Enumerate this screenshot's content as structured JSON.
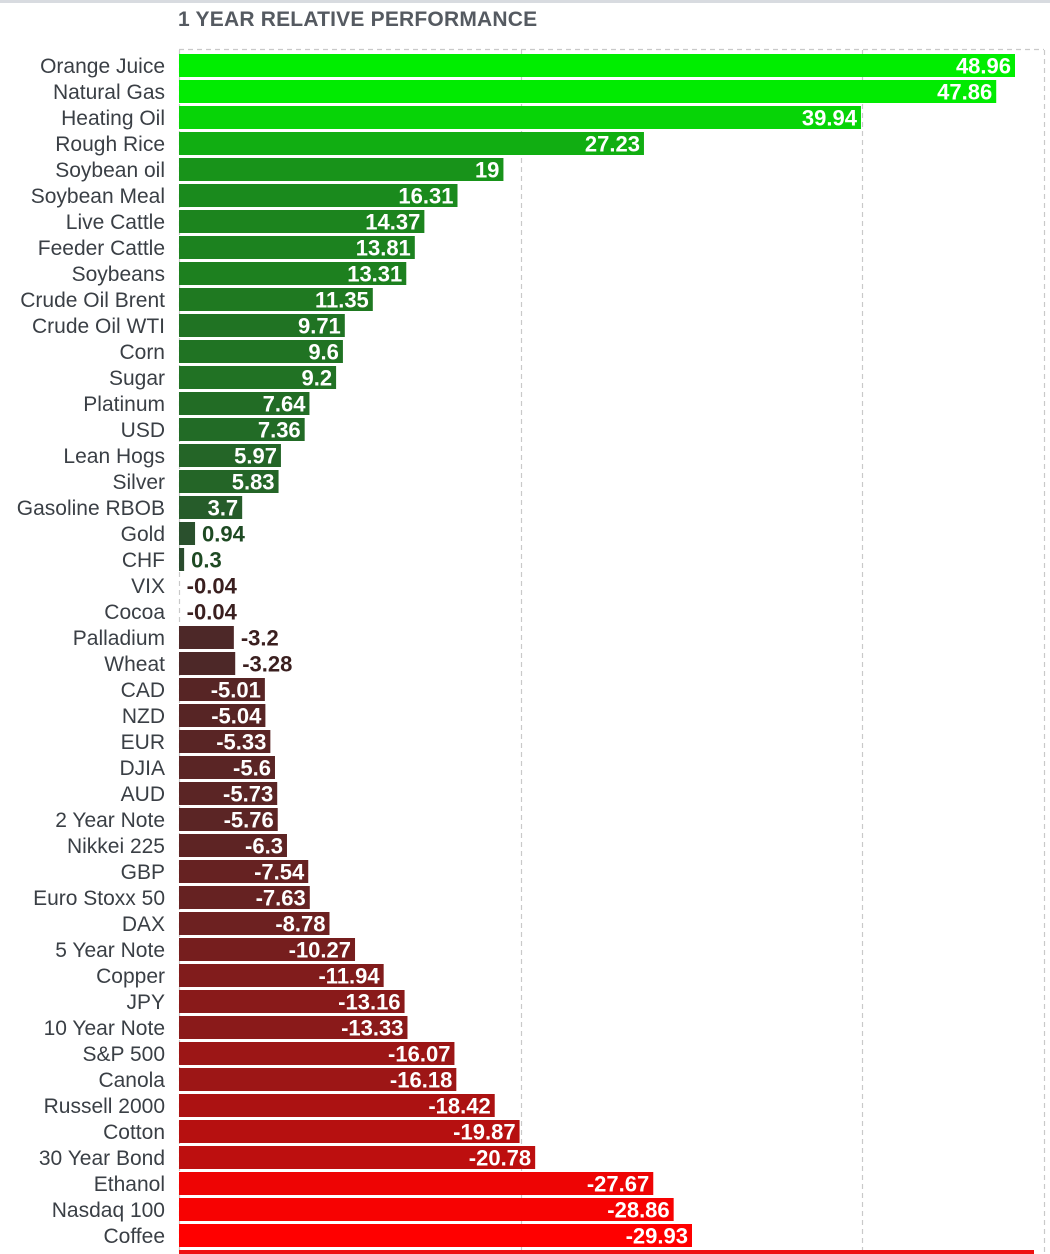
{
  "chart_data": {
    "type": "bar",
    "orientation": "horizontal",
    "title": "1 YEAR RELATIVE PERFORMANCE",
    "xlabel": "",
    "ylabel": "",
    "xlim": [
      -30,
      50
    ],
    "grid": true,
    "categories": [
      "Orange Juice",
      "Natural Gas",
      "Heating Oil",
      "Rough Rice",
      "Soybean oil",
      "Soybean Meal",
      "Live Cattle",
      "Feeder Cattle",
      "Soybeans",
      "Crude Oil Brent",
      "Crude Oil WTI",
      "Corn",
      "Sugar",
      "Platinum",
      "USD",
      "Lean Hogs",
      "Silver",
      "Gasoline RBOB",
      "Gold",
      "CHF",
      "VIX",
      "Cocoa",
      "Palladium",
      "Wheat",
      "CAD",
      "NZD",
      "EUR",
      "DJIA",
      "AUD",
      "2 Year Note",
      "Nikkei 225",
      "GBP",
      "Euro Stoxx 50",
      "DAX",
      "5 Year Note",
      "Copper",
      "JPY",
      "10 Year Note",
      "S&P 500",
      "Canola",
      "Russell 2000",
      "Cotton",
      "30 Year Bond",
      "Ethanol",
      "Nasdaq 100",
      "Coffee"
    ],
    "values": [
      48.96,
      47.86,
      39.94,
      27.23,
      19,
      16.31,
      14.37,
      13.81,
      13.31,
      11.35,
      9.71,
      9.6,
      9.2,
      7.64,
      7.36,
      5.97,
      5.83,
      3.7,
      0.94,
      0.3,
      -0.04,
      -0.04,
      -3.2,
      -3.28,
      -5.01,
      -5.04,
      -5.33,
      -5.6,
      -5.73,
      -5.76,
      -6.3,
      -7.54,
      -7.63,
      -8.78,
      -10.27,
      -11.94,
      -13.16,
      -13.33,
      -16.07,
      -16.18,
      -18.42,
      -19.87,
      -20.78,
      -27.67,
      -28.86,
      -29.93
    ],
    "labels": [
      "48.96",
      "47.86",
      "39.94",
      "27.23",
      "19",
      "16.31",
      "14.37",
      "13.81",
      "13.31",
      "11.35",
      "9.71",
      "9.6",
      "9.2",
      "7.64",
      "7.36",
      "5.97",
      "5.83",
      "3.7",
      "0.94",
      "0.3",
      "-0.04",
      "-0.04",
      "-3.2",
      "-3.28",
      "-5.01",
      "-5.04",
      "-5.33",
      "-5.6",
      "-5.73",
      "-5.76",
      "-6.3",
      "-7.54",
      "-7.63",
      "-8.78",
      "-10.27",
      "-11.94",
      "-13.16",
      "-13.33",
      "-16.07",
      "-16.18",
      "-18.42",
      "-19.87",
      "-20.78",
      "-27.67",
      "-28.86",
      "-29.93"
    ],
    "colors": {
      "positive_strong": "#00ee00",
      "positive_weak": "#2b4a2f",
      "negative_weak": "#3e2b2b",
      "negative_strong": "#ff0000",
      "category_label": "#3a3f45",
      "grid": "#c9c9c9"
    }
  }
}
